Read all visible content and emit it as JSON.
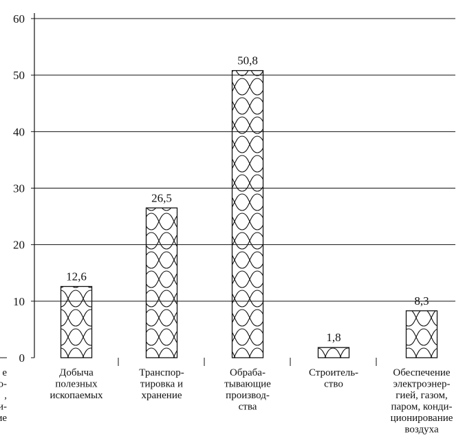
{
  "chart_data": {
    "type": "bar",
    "title": "",
    "xlabel": "",
    "ylabel": "",
    "ylim": [
      0,
      60
    ],
    "yticks": [
      "0",
      "10",
      "20",
      "30",
      "40",
      "50",
      "60"
    ],
    "grid": true,
    "categories": [
      [
        "Добыча",
        "полезных",
        "ископаемых"
      ],
      [
        "Транспор-",
        "тировка и",
        "хранение"
      ],
      [
        "Обраба-",
        "тывающие",
        "производ-",
        "ства"
      ],
      [
        "Строитель-",
        "ство"
      ],
      [
        "Обеспечение",
        "электроэнер-",
        "гией, газом,",
        "паром, конди-",
        "ционирование",
        "воздуха"
      ]
    ],
    "values": [
      12.6,
      26.5,
      50.8,
      1.8,
      8.3
    ],
    "value_labels": [
      "12,6",
      "26,5",
      "50,8",
      "1,8",
      "8,3"
    ],
    "cropped_left_label": [
      "е",
      "о-",
      ",",
      "ди-",
      "ие"
    ]
  }
}
